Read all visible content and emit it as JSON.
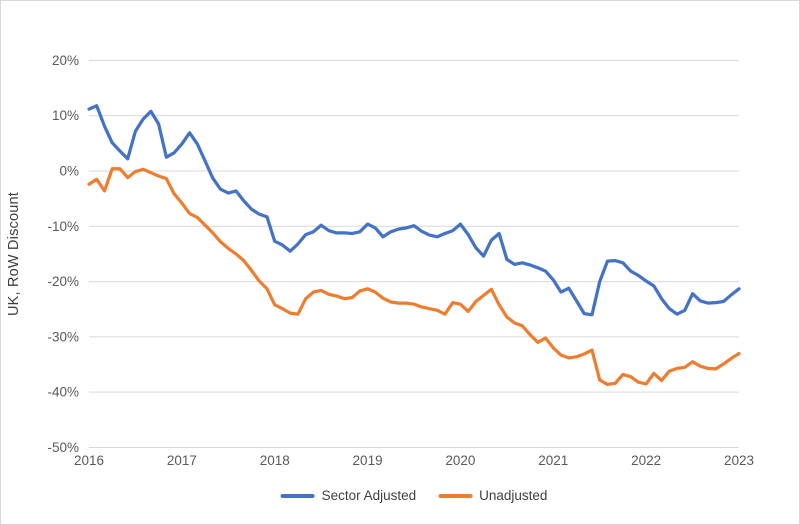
{
  "chart_data": {
    "type": "line",
    "title": "",
    "ylabel": "UK, RoW Discount",
    "xlabel": "",
    "x_frequency": "monthly",
    "x_start": "2016-01",
    "x_end": "2023-01",
    "x_tick_labels": [
      "2016",
      "2017",
      "2018",
      "2019",
      "2020",
      "2021",
      "2022",
      "2023"
    ],
    "y_ticks_percent": [
      20,
      10,
      0,
      -10,
      -20,
      -30,
      -40,
      -50
    ],
    "y_tick_labels": [
      "20%",
      "10%",
      "0%",
      "-10%",
      "-20%",
      "-30%",
      "-40%",
      "-50%"
    ],
    "ylim": [
      -50,
      20
    ],
    "grid": "horizontal",
    "gridline_color": "#d9d9d9",
    "legend_position": "bottom-center",
    "series": [
      {
        "name": "Sector Adjusted",
        "color": "#4472C4",
        "values": [
          11.2,
          11.8,
          8.1,
          5.1,
          3.6,
          2.2,
          7.2,
          9.4,
          10.8,
          8.5,
          2.5,
          3.3,
          4.9,
          6.9,
          4.9,
          1.8,
          -1.3,
          -3.3,
          -4.0,
          -3.6,
          -5.4,
          -6.9,
          -7.8,
          -8.3,
          -12.7,
          -13.4,
          -14.5,
          -13.2,
          -11.5,
          -11.0,
          -9.8,
          -10.8,
          -11.2,
          -11.2,
          -11.3,
          -11.0,
          -9.6,
          -10.3,
          -11.9,
          -11.0,
          -10.5,
          -10.3,
          -9.9,
          -10.9,
          -11.6,
          -11.9,
          -11.3,
          -10.8,
          -9.6,
          -11.5,
          -13.9,
          -15.4,
          -12.5,
          -11.3,
          -16.0,
          -16.9,
          -16.6,
          -17.0,
          -17.5,
          -18.1,
          -19.7,
          -21.9,
          -21.2,
          -23.5,
          -25.8,
          -26.0,
          -20.0,
          -16.3,
          -16.2,
          -16.6,
          -18.1,
          -18.9,
          -19.9,
          -20.8,
          -23.1,
          -24.9,
          -25.9,
          -25.2,
          -22.2,
          -23.5,
          -23.9,
          -23.8,
          -23.6,
          -22.4,
          -21.3
        ]
      },
      {
        "name": "Unadjusted",
        "color": "#ED7D31",
        "values": [
          -2.4,
          -1.5,
          -3.6,
          0.4,
          0.4,
          -1.2,
          -0.1,
          0.3,
          -0.3,
          -0.9,
          -1.4,
          -4.1,
          -5.8,
          -7.7,
          -8.4,
          -9.8,
          -11.2,
          -12.8,
          -14.0,
          -15.0,
          -16.2,
          -18.0,
          -19.9,
          -21.3,
          -24.2,
          -24.9,
          -25.7,
          -25.9,
          -23.1,
          -21.9,
          -21.6,
          -22.3,
          -22.6,
          -23.1,
          -22.9,
          -21.7,
          -21.3,
          -21.9,
          -23.0,
          -23.7,
          -23.9,
          -23.9,
          -24.1,
          -24.6,
          -24.9,
          -25.2,
          -25.9,
          -23.8,
          -24.1,
          -25.4,
          -23.6,
          -22.5,
          -21.4,
          -24.2,
          -26.4,
          -27.5,
          -28.0,
          -29.6,
          -31.0,
          -30.2,
          -32.0,
          -33.3,
          -33.8,
          -33.6,
          -33.1,
          -32.4,
          -37.8,
          -38.6,
          -38.4,
          -36.8,
          -37.2,
          -38.2,
          -38.5,
          -36.6,
          -37.9,
          -36.2,
          -35.7,
          -35.5,
          -34.5,
          -35.3,
          -35.7,
          -35.8,
          -34.9,
          -33.9,
          -33.0
        ]
      }
    ]
  },
  "colors": {
    "background": "#ffffff",
    "frame_border": "#d9d9d9",
    "gridline": "#d9d9d9",
    "axis_tick_text": "#595959",
    "legend_text": "#404040",
    "series_blue": "#4472C4",
    "series_orange": "#ED7D31"
  }
}
